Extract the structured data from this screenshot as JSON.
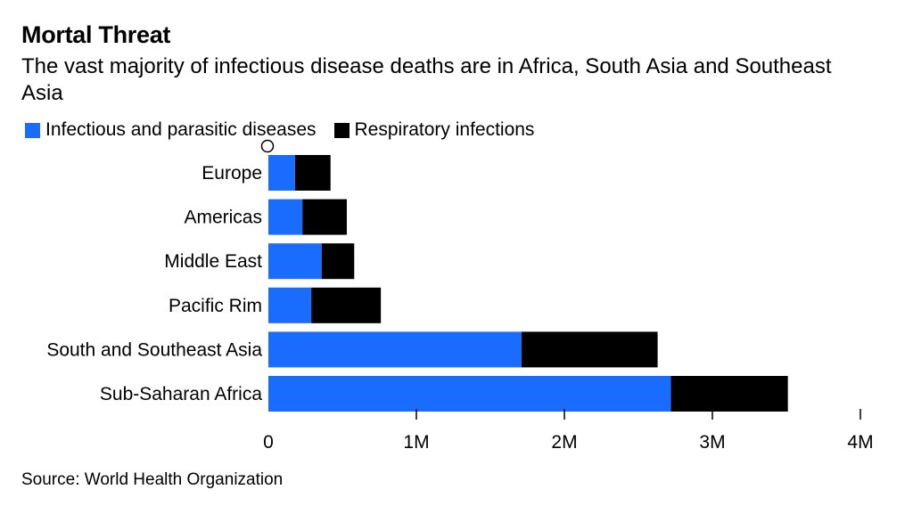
{
  "header": {
    "title": "Mortal Threat",
    "subtitle": "The vast majority of infectious disease deaths are in Africa, South Asia and Southeast Asia"
  },
  "legend": {
    "items": [
      {
        "label": "Infectious and parasitic diseases",
        "color": "#1a6cff"
      },
      {
        "label": "Respiratory infections",
        "color": "#000000"
      }
    ]
  },
  "footer": {
    "source": "Source: World Health Organization"
  },
  "chart_data": {
    "type": "bar",
    "orientation": "horizontal",
    "stacked": true,
    "title": "Mortal Threat",
    "subtitle": "The vast majority of infectious disease deaths are in Africa, South Asia and Southeast Asia",
    "categories": [
      "Europe",
      "Americas",
      "Middle East",
      "Pacific Rim",
      "South and Southeast Asia",
      "Sub-Saharan Africa"
    ],
    "series": [
      {
        "name": "Infectious and parasitic diseases",
        "color": "#1a6cff",
        "values": [
          180000,
          230000,
          360000,
          290000,
          1710000,
          2720000
        ]
      },
      {
        "name": "Respiratory infections",
        "color": "#000000",
        "values": [
          240000,
          300000,
          220000,
          470000,
          920000,
          790000
        ]
      }
    ],
    "xlim": [
      0,
      4000000
    ],
    "xticks": [
      {
        "value": 0,
        "label": "0"
      },
      {
        "value": 1000000,
        "label": "1M"
      },
      {
        "value": 2000000,
        "label": "2M"
      },
      {
        "value": 3000000,
        "label": "3M"
      },
      {
        "value": 4000000,
        "label": "4M"
      }
    ],
    "xlabel": "",
    "ylabel": "",
    "grid": false,
    "legend_position": "top-left"
  }
}
